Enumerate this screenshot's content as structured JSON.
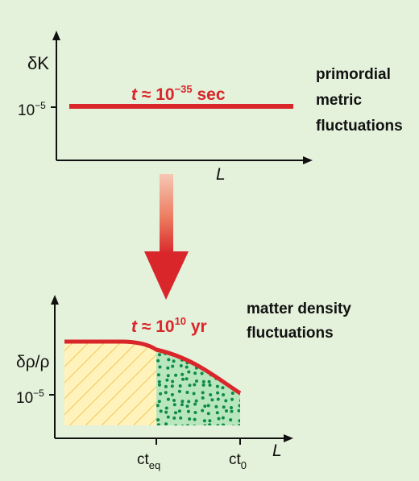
{
  "top_panel": {
    "y_axis_label": "δK",
    "x_axis_label": "L",
    "y_tick": {
      "base": "10",
      "exp": "−5"
    },
    "time_label": {
      "var": "t",
      "approx": " ≈ ",
      "base": "10",
      "exp": "−35",
      "unit": " sec"
    },
    "caption_lines": [
      "primordial",
      "metric",
      "fluctuations"
    ]
  },
  "bottom_panel": {
    "y_axis_label": "δρ/ρ",
    "x_axis_label": "L",
    "y_tick": {
      "base": "10",
      "exp": "−5"
    },
    "time_label": {
      "var": "t",
      "approx": " ≈ ",
      "base": "10",
      "exp": "10",
      "unit": " yr"
    },
    "caption_lines": [
      "matter density",
      "fluctuations"
    ],
    "x_ticks": [
      {
        "base": "ct",
        "sub": "eq"
      },
      {
        "base": "ct",
        "sub": "0"
      }
    ]
  },
  "colors": {
    "background": "#e4f1db",
    "curve": "#d8262a",
    "hatch_fill": "#fff2bb",
    "hatch_line": "#efc85a",
    "dots_fill": "#b8e6bd",
    "dots": "#0e8a49",
    "axis": "#111111"
  }
}
